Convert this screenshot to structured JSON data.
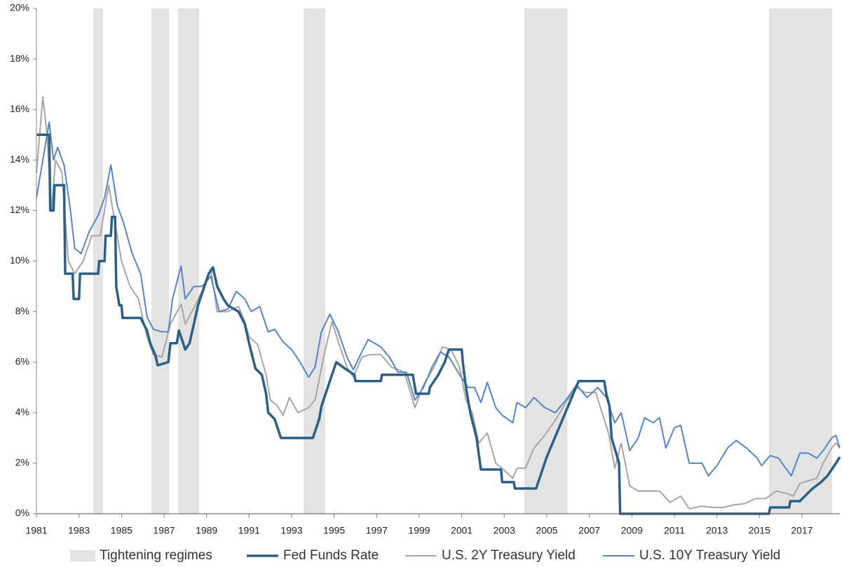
{
  "chart_data": {
    "type": "line",
    "xlim": [
      1981,
      2018.78
    ],
    "ylim": [
      0,
      20
    ],
    "xticks": [
      1981,
      1983,
      1985,
      1987,
      1989,
      1991,
      1993,
      1995,
      1997,
      1999,
      2001,
      2003,
      2005,
      2007,
      2009,
      2011,
      2013,
      2015,
      2017
    ],
    "yticks": [
      {
        "value": 0,
        "label": "0%"
      },
      {
        "value": 2,
        "label": "2%"
      },
      {
        "value": 4,
        "label": "4%"
      },
      {
        "value": 6,
        "label": "6%"
      },
      {
        "value": 8,
        "label": "8%"
      },
      {
        "value": 10,
        "label": "10%"
      },
      {
        "value": 12,
        "label": "12%"
      },
      {
        "value": 14,
        "label": "14%"
      },
      {
        "value": 16,
        "label": "16%"
      },
      {
        "value": 18,
        "label": "18%"
      },
      {
        "value": 20,
        "label": "20%"
      }
    ],
    "bands": {
      "name": "Tightening regimes",
      "color": "#e3e3e3",
      "ranges": [
        [
          1983.67,
          1984.13
        ],
        [
          1986.41,
          1987.23
        ],
        [
          1987.66,
          1988.65
        ],
        [
          1993.56,
          1994.58
        ],
        [
          2003.95,
          2005.96
        ],
        [
          2015.45,
          2018.42
        ]
      ]
    },
    "series": [
      {
        "name": "Fed Funds Rate",
        "color": "#2b5f86",
        "width": 3.5,
        "x": [
          1981.0,
          1981.6,
          1981.65,
          1981.8,
          1981.85,
          1982.3,
          1982.35,
          1982.7,
          1982.75,
          1983.0,
          1983.05,
          1983.9,
          1983.95,
          1984.2,
          1984.25,
          1984.5,
          1984.55,
          1984.7,
          1984.75,
          1984.9,
          1985.0,
          1985.05,
          1985.9,
          1986.2,
          1986.35,
          1986.6,
          1986.7,
          1987.2,
          1987.3,
          1987.6,
          1987.7,
          1987.9,
          1988.0,
          1988.2,
          1988.4,
          1988.6,
          1988.8,
          1989.1,
          1989.3,
          1989.5,
          1989.8,
          1990.0,
          1990.5,
          1990.8,
          1991.0,
          1991.3,
          1991.6,
          1991.8,
          1991.9,
          1992.2,
          1992.5,
          1994.0,
          1994.1,
          1994.3,
          1994.4,
          1994.6,
          1994.9,
          1995.1,
          1995.5,
          1995.95,
          1996.0,
          1997.2,
          1997.25,
          1998.7,
          1998.75,
          1998.85,
          1999.45,
          1999.5,
          1999.9,
          2000.2,
          2000.4,
          2001.0,
          2001.05,
          2001.2,
          2001.4,
          2001.7,
          2001.9,
          2002.85,
          2002.9,
          2003.45,
          2003.5,
          2004.5,
          2004.8,
          2005.0,
          2005.5,
          2006.0,
          2006.5,
          2007.7,
          2007.8,
          2007.95,
          2008.05,
          2008.4,
          2008.45,
          2015.45,
          2015.5,
          2016.4,
          2016.45,
          2016.9,
          2017.2,
          2017.5,
          2017.9,
          2018.2,
          2018.4,
          2018.6,
          2018.78
        ],
        "values": [
          15,
          15,
          12,
          12,
          13,
          13,
          9.5,
          9.5,
          8.5,
          8.5,
          9.5,
          9.5,
          10,
          10,
          11,
          11,
          11.75,
          11.75,
          9,
          8.25,
          8.25,
          7.75,
          7.75,
          7.25,
          6.75,
          6.25,
          5.875,
          6,
          6.75,
          6.75,
          7.25,
          6.75,
          6.5,
          6.75,
          7.5,
          8.25,
          8.75,
          9.5,
          9.75,
          9,
          8.5,
          8.25,
          8,
          7.5,
          6.75,
          5.75,
          5.5,
          4.75,
          4,
          3.75,
          3,
          3,
          3.25,
          3.75,
          4.25,
          4.75,
          5.5,
          6,
          5.75,
          5.5,
          5.25,
          5.25,
          5.5,
          5.5,
          5.25,
          4.75,
          4.75,
          5,
          5.5,
          6,
          6.5,
          6.5,
          6,
          5,
          4,
          3,
          1.75,
          1.75,
          1.25,
          1.25,
          1,
          1,
          1.75,
          2.25,
          3.25,
          4.25,
          5.25,
          5.25,
          4.75,
          4.25,
          3,
          2,
          0,
          0,
          0.25,
          0.25,
          0.5,
          0.5,
          0.75,
          1,
          1.25,
          1.5,
          1.75,
          2,
          2.25
        ]
      },
      {
        "name": "U.S. 2Y Treasury Yield",
        "color": "#a6a6a6",
        "width": 2,
        "x": [
          1981.0,
          1981.3,
          1981.5,
          1981.7,
          1981.9,
          1982.2,
          1982.5,
          1982.8,
          1983.2,
          1983.6,
          1984.0,
          1984.4,
          1984.7,
          1985.0,
          1985.4,
          1985.8,
          1986.2,
          1986.5,
          1986.9,
          1987.3,
          1987.8,
          1988.0,
          1988.5,
          1989.0,
          1989.2,
          1989.5,
          1990.0,
          1990.5,
          1990.8,
          1991.0,
          1991.4,
          1991.8,
          1992.0,
          1992.3,
          1992.6,
          1992.9,
          1993.3,
          1993.8,
          1994.1,
          1994.5,
          1994.9,
          1995.2,
          1995.6,
          1995.9,
          1996.3,
          1996.7,
          1997.2,
          1997.7,
          1998.3,
          1998.8,
          1999.2,
          1999.7,
          2000.1,
          2000.5,
          2000.9,
          2001.2,
          2001.5,
          2001.8,
          2002.2,
          2002.6,
          2002.9,
          2003.4,
          2003.6,
          2004.0,
          2004.4,
          2004.9,
          2005.4,
          2005.9,
          2006.4,
          2006.8,
          2007.3,
          2007.6,
          2007.9,
          2008.2,
          2008.5,
          2008.9,
          2009.3,
          2009.8,
          2010.3,
          2010.8,
          2011.3,
          2011.7,
          2012.3,
          2012.8,
          2013.3,
          2013.8,
          2014.3,
          2014.8,
          2015.3,
          2015.8,
          2016.3,
          2016.6,
          2016.9,
          2017.3,
          2017.7,
          2018.0,
          2018.4,
          2018.6,
          2018.78
        ],
        "values": [
          13.5,
          16.5,
          15,
          12,
          14,
          13.5,
          10,
          9.5,
          10,
          11,
          11,
          13,
          11.5,
          10,
          9,
          8.5,
          7,
          6.3,
          6.2,
          7.5,
          8.3,
          7.5,
          8.3,
          9.2,
          9.7,
          8,
          8,
          8.2,
          7.6,
          7,
          6.7,
          5.5,
          4.5,
          4.3,
          3.9,
          4.6,
          4,
          4.2,
          4.5,
          6.2,
          7.6,
          6.8,
          5.8,
          5.4,
          6.2,
          6.3,
          6.3,
          5.8,
          5.6,
          4.2,
          5.1,
          5.8,
          6.6,
          6.5,
          5.8,
          4.5,
          4,
          2.8,
          3.2,
          2,
          1.8,
          1.4,
          1.8,
          1.8,
          2.6,
          3.1,
          3.7,
          4.4,
          5,
          4.8,
          4.8,
          4,
          3.2,
          1.8,
          2.8,
          1.1,
          0.9,
          0.9,
          0.9,
          0.45,
          0.7,
          0.2,
          0.3,
          0.25,
          0.25,
          0.35,
          0.4,
          0.6,
          0.6,
          0.9,
          0.8,
          0.7,
          1.2,
          1.3,
          1.4,
          2,
          2.6,
          2.8,
          2.6
        ]
      },
      {
        "name": "U.S. 10Y Treasury Yield",
        "color": "#5585c5",
        "width": 2,
        "x": [
          1981.0,
          1981.3,
          1981.6,
          1981.8,
          1982.0,
          1982.3,
          1982.6,
          1982.8,
          1983.1,
          1983.5,
          1983.9,
          1984.2,
          1984.5,
          1984.8,
          1985.1,
          1985.5,
          1985.9,
          1986.2,
          1986.5,
          1986.9,
          1987.2,
          1987.4,
          1987.8,
          1988.0,
          1988.4,
          1988.8,
          1989.2,
          1989.6,
          1990.0,
          1990.4,
          1990.8,
          1991.1,
          1991.5,
          1991.9,
          1992.2,
          1992.6,
          1993.0,
          1993.4,
          1993.8,
          1994.1,
          1994.4,
          1994.8,
          1995.2,
          1995.6,
          1995.9,
          1996.3,
          1996.6,
          1997.2,
          1997.6,
          1998.0,
          1998.4,
          1998.8,
          1999.2,
          1999.6,
          2000.0,
          2000.4,
          2000.9,
          2001.3,
          2001.6,
          2001.9,
          2002.2,
          2002.6,
          2002.9,
          2003.4,
          2003.6,
          2004.0,
          2004.4,
          2004.9,
          2005.4,
          2005.9,
          2006.4,
          2006.9,
          2007.4,
          2007.8,
          2008.2,
          2008.5,
          2008.9,
          2009.3,
          2009.6,
          2010.0,
          2010.3,
          2010.6,
          2011.0,
          2011.3,
          2011.7,
          2012.3,
          2012.6,
          2013.0,
          2013.5,
          2013.9,
          2014.4,
          2014.9,
          2015.1,
          2015.5,
          2015.9,
          2016.5,
          2016.9,
          2017.3,
          2017.7,
          2018.0,
          2018.4,
          2018.6,
          2018.78
        ],
        "values": [
          12.5,
          14,
          15.5,
          14,
          14.5,
          13.8,
          12,
          10.5,
          10.3,
          11.2,
          11.8,
          12.5,
          13.8,
          12.2,
          11.5,
          10.3,
          9.5,
          7.8,
          7.3,
          7.2,
          7.2,
          8.5,
          9.8,
          8.5,
          9,
          9,
          9.4,
          8,
          8.1,
          8.8,
          8.5,
          8,
          8.2,
          7.2,
          7.3,
          6.8,
          6.5,
          6,
          5.4,
          5.8,
          7.2,
          7.9,
          7.2,
          6.2,
          5.7,
          6.4,
          6.9,
          6.6,
          6.2,
          5.6,
          5.6,
          4.5,
          5,
          5.8,
          6.4,
          6.2,
          5.5,
          5,
          5,
          4.4,
          5.2,
          4.2,
          3.9,
          3.6,
          4.4,
          4.2,
          4.6,
          4.2,
          4,
          4.5,
          5.1,
          4.6,
          5,
          4.6,
          3.6,
          4,
          2.5,
          3,
          3.8,
          3.6,
          3.8,
          2.6,
          3.4,
          3.5,
          2,
          2,
          1.5,
          1.9,
          2.6,
          2.9,
          2.6,
          2.2,
          1.9,
          2.3,
          2.2,
          1.5,
          2.4,
          2.4,
          2.2,
          2.5,
          3,
          3.1,
          2.6
        ]
      }
    ]
  }
}
